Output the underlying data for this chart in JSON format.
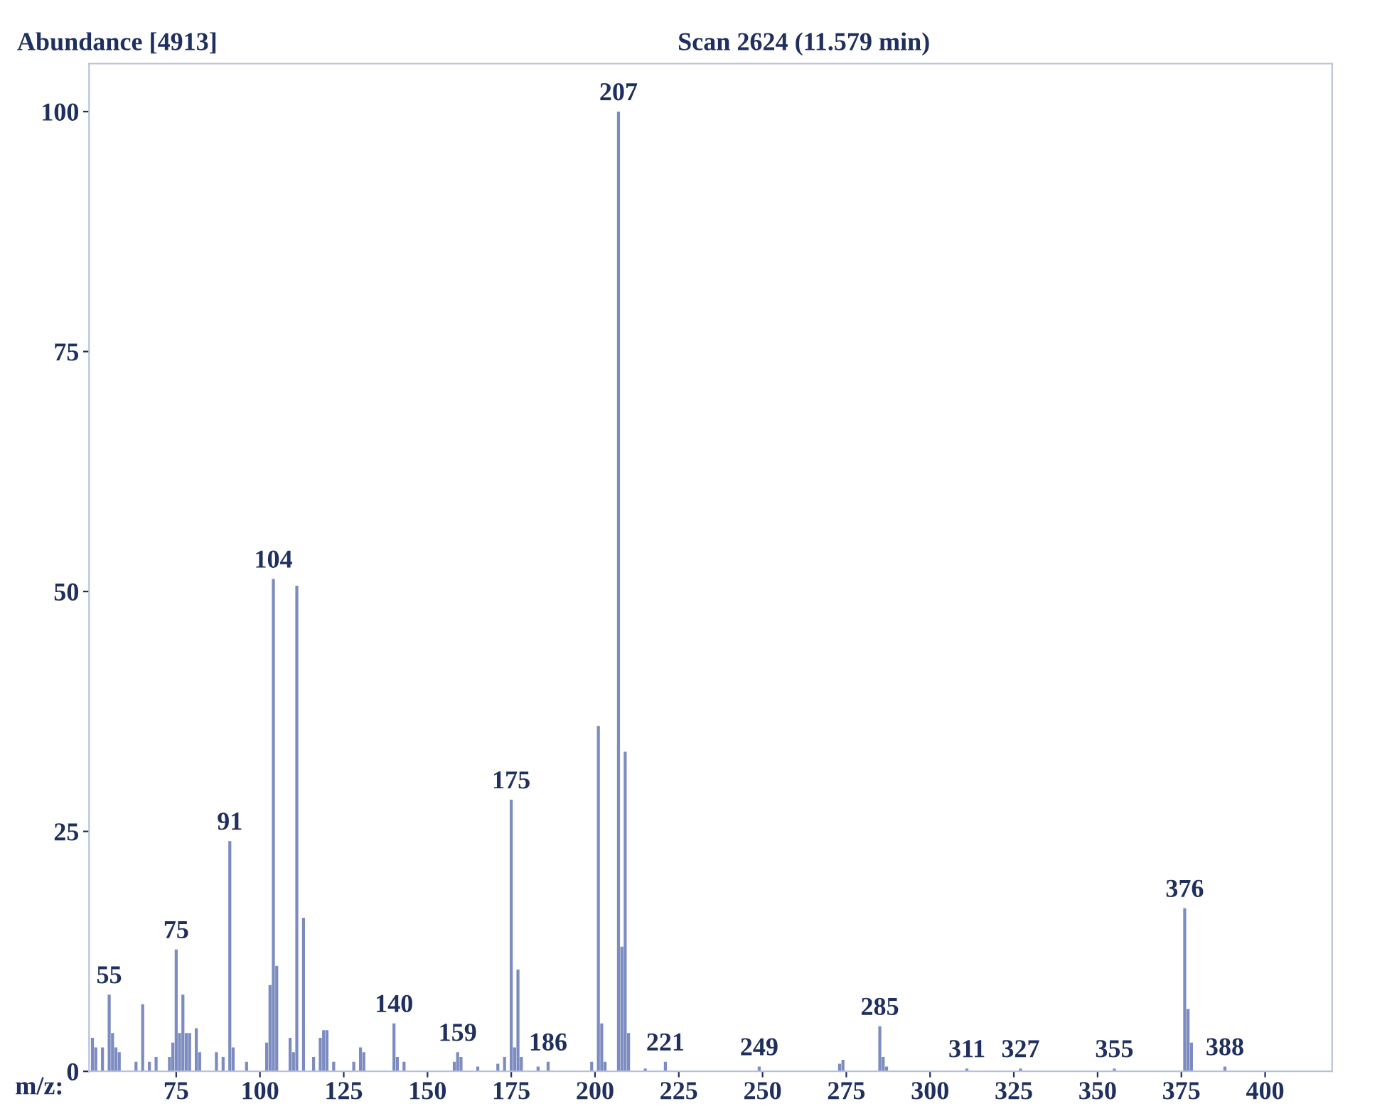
{
  "chart_data": {
    "type": "bar",
    "title": "Scan 2624 (11.579 min)",
    "ylabel": "Abundance [4913]",
    "xlabel": "m/z:",
    "x": [
      50,
      51,
      53,
      55,
      56,
      57,
      58,
      63,
      65,
      67,
      69,
      73,
      74,
      75,
      76,
      77,
      78,
      79,
      81,
      82,
      87,
      89,
      91,
      92,
      96,
      102,
      103,
      104,
      105,
      109,
      110,
      111,
      113,
      116,
      118,
      119,
      120,
      122,
      128,
      130,
      131,
      140,
      141,
      143,
      158,
      159,
      160,
      165,
      171,
      173,
      175,
      176,
      177,
      178,
      183,
      186,
      199,
      201,
      202,
      203,
      207,
      208,
      209,
      210,
      215,
      221,
      249,
      273,
      274,
      285,
      286,
      287,
      311,
      327,
      355,
      376,
      377,
      378,
      388
    ],
    "values": [
      3.5,
      2.5,
      2.5,
      8,
      4,
      2.5,
      2,
      1,
      7,
      1,
      1.5,
      1.5,
      3,
      12.7,
      4,
      8,
      4,
      4,
      4.5,
      2,
      2,
      1.5,
      24,
      2.5,
      1,
      3,
      9,
      51.3,
      11,
      3.5,
      2,
      50.6,
      16,
      1.5,
      3.5,
      4.3,
      4.3,
      1,
      1,
      2.5,
      2,
      5,
      1.5,
      1,
      1,
      2,
      1.5,
      0.5,
      0.8,
      1.5,
      28.3,
      2.5,
      10.6,
      1.5,
      0.5,
      1,
      1,
      36,
      5,
      1,
      100,
      13,
      33.3,
      4,
      0.3,
      1,
      0.5,
      0.8,
      1.2,
      4.7,
      1.5,
      0.5,
      0.3,
      0.3,
      0.3,
      17,
      6.5,
      3,
      0.5
    ],
    "color": "#7d8cc0",
    "annotations": [
      {
        "text": "55",
        "x": 55,
        "y": 8
      },
      {
        "text": "75",
        "x": 75,
        "y": 12.7
      },
      {
        "text": "91",
        "x": 91,
        "y": 24
      },
      {
        "text": "104",
        "x": 104,
        "y": 51.3
      },
      {
        "text": "140",
        "x": 140,
        "y": 5
      },
      {
        "text": "159",
        "x": 159,
        "y": 2
      },
      {
        "text": "175",
        "x": 175,
        "y": 28.3
      },
      {
        "text": "186",
        "x": 186,
        "y": 1
      },
      {
        "text": "207",
        "x": 207,
        "y": 100
      },
      {
        "text": "221",
        "x": 221,
        "y": 1
      },
      {
        "text": "249",
        "x": 249,
        "y": 0.5
      },
      {
        "text": "285",
        "x": 285,
        "y": 4.7
      },
      {
        "text": "311",
        "x": 311,
        "y": 0.3
      },
      {
        "text": "327",
        "x": 327,
        "y": 0.3
      },
      {
        "text": "355",
        "x": 355,
        "y": 0.3
      },
      {
        "text": "376",
        "x": 376,
        "y": 17
      },
      {
        "text": "388",
        "x": 388,
        "y": 0.5
      }
    ],
    "xlim": [
      49,
      420
    ],
    "ylim": [
      0,
      105
    ],
    "xticks": [
      75,
      100,
      125,
      150,
      175,
      200,
      225,
      250,
      275,
      300,
      325,
      350,
      375,
      400
    ],
    "yticks": [
      0,
      25,
      50,
      75,
      100
    ],
    "grid": false
  }
}
